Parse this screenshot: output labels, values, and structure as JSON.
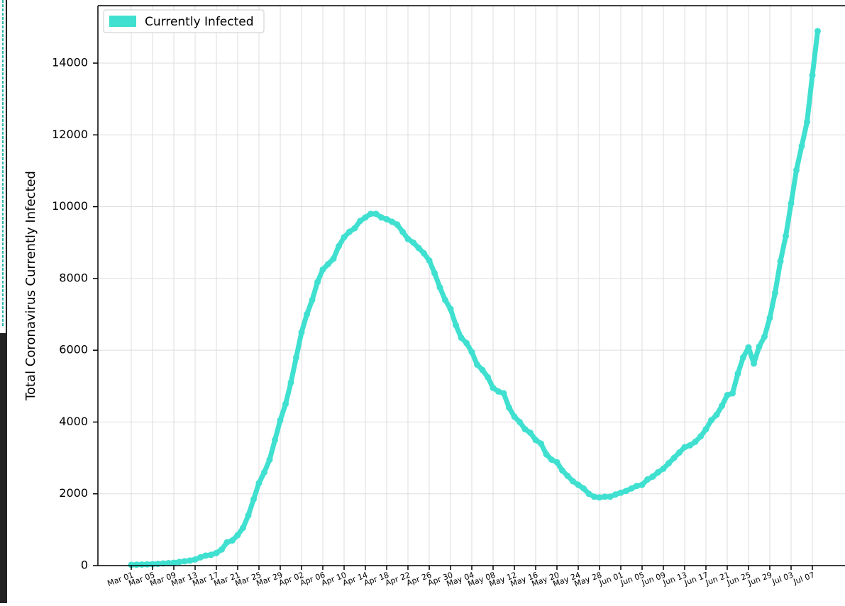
{
  "chart_data": {
    "type": "line",
    "y_label": "Total Coronavirus Currently Infected",
    "categories": [
      "Mar 01",
      null,
      null,
      null,
      "Mar 05",
      null,
      null,
      null,
      "Mar 09",
      null,
      null,
      null,
      "Mar 13",
      null,
      null,
      null,
      "Mar 17",
      null,
      null,
      null,
      "Mar 21",
      null,
      null,
      null,
      "Mar 25",
      null,
      null,
      null,
      "Mar 29",
      null,
      null,
      null,
      "Apr 02",
      null,
      null,
      null,
      "Apr 06",
      null,
      null,
      null,
      "Apr 10",
      null,
      null,
      null,
      "Apr 14",
      null,
      null,
      null,
      "Apr 18",
      null,
      null,
      null,
      "Apr 22",
      null,
      null,
      null,
      "Apr 26",
      null,
      null,
      null,
      "Apr 30",
      null,
      null,
      null,
      "May 04",
      null,
      null,
      null,
      "May 08",
      null,
      null,
      null,
      "May 12",
      null,
      null,
      null,
      "May 16",
      null,
      null,
      null,
      "May 20",
      null,
      null,
      null,
      "May 24",
      null,
      null,
      null,
      "May 28",
      null,
      null,
      null,
      "Jun 01",
      null,
      null,
      null,
      "Jun 05",
      null,
      null,
      null,
      "Jun 09",
      null,
      null,
      null,
      "Jun 13",
      null,
      null,
      null,
      "Jun 17",
      null,
      null,
      null,
      "Jun 21",
      null,
      null,
      null,
      "Jun 25",
      null,
      null,
      null,
      "Jun 29",
      null,
      null,
      null,
      "Jul 03",
      null,
      null,
      null,
      "Jul 07",
      null
    ],
    "series": [
      {
        "name": "Currently Infected",
        "color": "#40e0d0",
        "values": [
          20,
          25,
          30,
          35,
          40,
          50,
          60,
          70,
          80,
          100,
          120,
          140,
          170,
          230,
          280,
          300,
          350,
          450,
          650,
          700,
          850,
          1050,
          1400,
          1850,
          2300,
          2600,
          2950,
          3500,
          4050,
          4500,
          5100,
          5800,
          6500,
          7000,
          7400,
          7900,
          8250,
          8400,
          8550,
          8900,
          9150,
          9300,
          9400,
          9600,
          9700,
          9800,
          9800,
          9700,
          9650,
          9580,
          9500,
          9300,
          9100,
          9000,
          8850,
          8700,
          8500,
          8150,
          7750,
          7400,
          7150,
          6700,
          6350,
          6200,
          5950,
          5600,
          5450,
          5250,
          4950,
          4850,
          4800,
          4400,
          4150,
          4000,
          3800,
          3700,
          3500,
          3400,
          3100,
          2950,
          2880,
          2650,
          2500,
          2350,
          2250,
          2150,
          2000,
          1920,
          1900,
          1920,
          1920,
          1980,
          2030,
          2080,
          2150,
          2220,
          2250,
          2400,
          2480,
          2600,
          2700,
          2850,
          3000,
          3150,
          3300,
          3350,
          3450,
          3600,
          3800,
          4050,
          4200,
          4450,
          4750,
          4800,
          5350,
          5800,
          6080,
          5630,
          6100,
          6380,
          6900,
          7600,
          8480,
          9180,
          10090,
          11020,
          11690,
          12360,
          13660,
          14890
        ]
      }
    ],
    "ylim": [
      0,
      15600
    ],
    "yticks": [
      0,
      2000,
      4000,
      6000,
      8000,
      10000,
      12000,
      14000
    ],
    "grid": true,
    "legend": "upper left"
  }
}
